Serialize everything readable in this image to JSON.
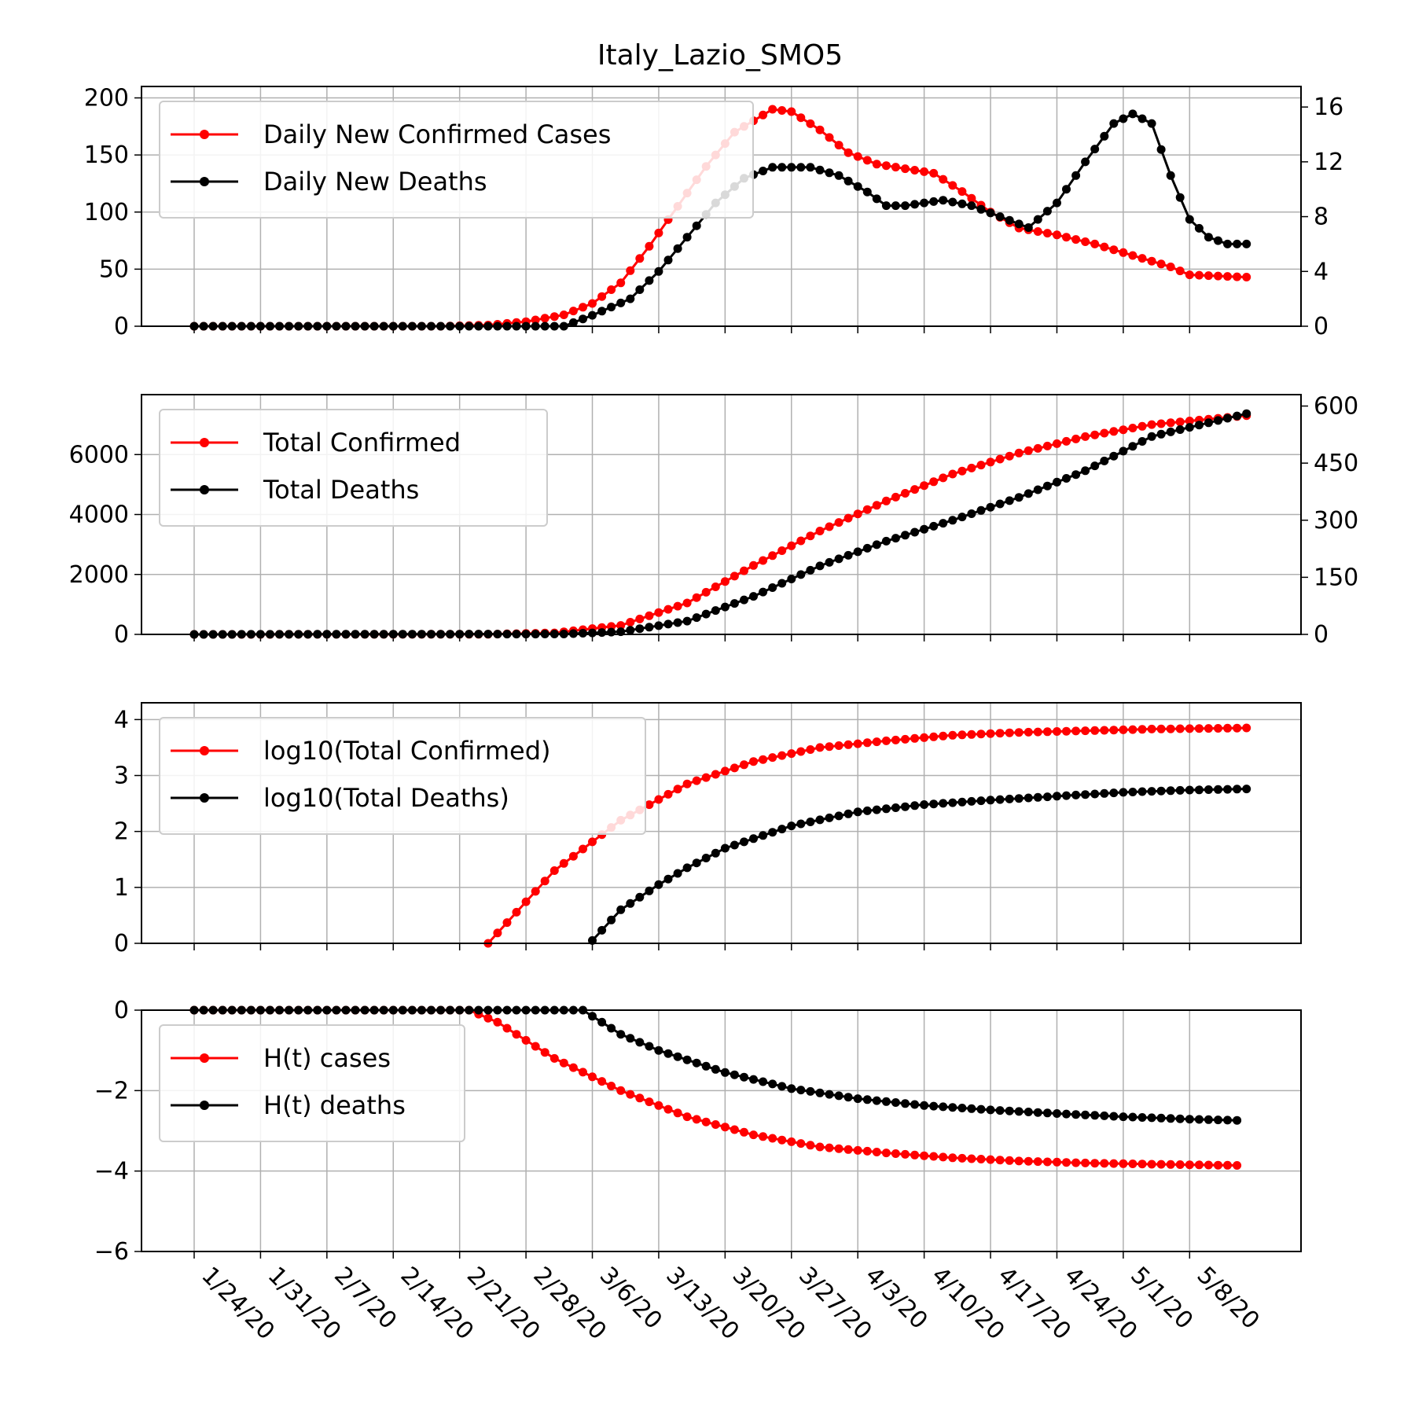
{
  "title": "Italy_Lazio_SMO5",
  "x_tick_labels": [
    "1/24/20",
    "1/31/20",
    "2/7/20",
    "2/14/20",
    "2/21/20",
    "2/28/20",
    "3/6/20",
    "3/13/20",
    "3/20/20",
    "3/27/20",
    "4/3/20",
    "4/10/20",
    "4/17/20",
    "4/24/20",
    "5/1/20",
    "5/8/20"
  ],
  "colors": {
    "cases": "#ff0000",
    "deaths": "#000000",
    "grid": "#b0b0b0"
  },
  "chart_data": [
    {
      "type": "line",
      "x_start": "1/24/20",
      "x_end": "5/14/20",
      "ylim_left": [
        0,
        210
      ],
      "ylim_right": [
        0,
        17.5
      ],
      "yticks_left": [
        0,
        50,
        100,
        150,
        200
      ],
      "yticks_right": [
        0,
        4,
        8,
        12,
        16
      ],
      "legend_position": "upper-left",
      "grid": true,
      "series": [
        {
          "name": "Daily New Confirmed Cases",
          "axis": "left",
          "color": "#ff0000",
          "keypoints": [
            [
              "1/24/20",
              0
            ],
            [
              "2/19/20",
              0
            ],
            [
              "2/24/20",
              1
            ],
            [
              "2/28/20",
              4
            ],
            [
              "3/3/20",
              10
            ],
            [
              "3/6/20",
              20
            ],
            [
              "3/9/20",
              38
            ],
            [
              "3/12/20",
              70
            ],
            [
              "3/15/20",
              105
            ],
            [
              "3/18/20",
              140
            ],
            [
              "3/21/20",
              170
            ],
            [
              "3/25/20",
              190
            ],
            [
              "3/27/20",
              188
            ],
            [
              "3/30/20",
              172
            ],
            [
              "4/2/20",
              152
            ],
            [
              "4/5/20",
              142
            ],
            [
              "4/8/20",
              138
            ],
            [
              "4/11/20",
              134
            ],
            [
              "4/14/20",
              118
            ],
            [
              "4/17/20",
              100
            ],
            [
              "4/20/20",
              86
            ],
            [
              "4/24/20",
              80
            ],
            [
              "4/28/20",
              72
            ],
            [
              "5/2/20",
              62
            ],
            [
              "5/6/20",
              52
            ],
            [
              "5/8/20",
              45
            ],
            [
              "5/14/20",
              43
            ]
          ]
        },
        {
          "name": "Daily New Deaths",
          "axis": "right",
          "color": "#000000",
          "keypoints": [
            [
              "1/24/20",
              0
            ],
            [
              "3/3/20",
              0
            ],
            [
              "3/6/20",
              0.8
            ],
            [
              "3/10/20",
              2
            ],
            [
              "3/13/20",
              4
            ],
            [
              "3/16/20",
              6.5
            ],
            [
              "3/19/20",
              9
            ],
            [
              "3/22/20",
              10.8
            ],
            [
              "3/25/20",
              11.6
            ],
            [
              "3/29/20",
              11.6
            ],
            [
              "4/1/20",
              11
            ],
            [
              "4/4/20",
              9.8
            ],
            [
              "4/6/20",
              8.8
            ],
            [
              "4/8/20",
              8.8
            ],
            [
              "4/12/20",
              9.2
            ],
            [
              "4/15/20",
              8.8
            ],
            [
              "4/18/20",
              8
            ],
            [
              "4/21/20",
              7.2
            ],
            [
              "4/24/20",
              9
            ],
            [
              "4/27/20",
              12
            ],
            [
              "4/30/20",
              14.8
            ],
            [
              "5/2/20",
              15.5
            ],
            [
              "5/4/20",
              14.8
            ],
            [
              "5/6/20",
              11
            ],
            [
              "5/8/20",
              7.8
            ],
            [
              "5/10/20",
              6.5
            ],
            [
              "5/12/20",
              6
            ],
            [
              "5/14/20",
              6
            ]
          ]
        }
      ]
    },
    {
      "type": "line",
      "x_start": "1/24/20",
      "x_end": "5/14/20",
      "ylim_left": [
        0,
        8000
      ],
      "ylim_right": [
        0,
        630
      ],
      "yticks_left": [
        0,
        2000,
        4000,
        6000
      ],
      "yticks_right": [
        0,
        150,
        300,
        450,
        600
      ],
      "legend_position": "upper-left",
      "grid": true,
      "series": [
        {
          "name": "Total Confirmed",
          "axis": "left",
          "color": "#ff0000",
          "keypoints": [
            [
              "1/24/20",
              0
            ],
            [
              "2/24/20",
              5
            ],
            [
              "3/2/20",
              50
            ],
            [
              "3/9/20",
              300
            ],
            [
              "3/16/20",
              1050
            ],
            [
              "3/23/20",
              2300
            ],
            [
              "3/30/20",
              3450
            ],
            [
              "4/6/20",
              4450
            ],
            [
              "4/13/20",
              5350
            ],
            [
              "4/20/20",
              6050
            ],
            [
              "4/27/20",
              6600
            ],
            [
              "5/4/20",
              7000
            ],
            [
              "5/14/20",
              7300
            ]
          ]
        },
        {
          "name": "Total Deaths",
          "axis": "right",
          "color": "#000000",
          "keypoints": [
            [
              "1/24/20",
              0
            ],
            [
              "3/3/20",
              1
            ],
            [
              "3/9/20",
              7
            ],
            [
              "3/16/20",
              35
            ],
            [
              "3/23/20",
              100
            ],
            [
              "3/30/20",
              180
            ],
            [
              "4/6/20",
              245
            ],
            [
              "4/13/20",
              300
            ],
            [
              "4/20/20",
              360
            ],
            [
              "4/27/20",
              430
            ],
            [
              "5/4/20",
              520
            ],
            [
              "5/14/20",
              580
            ]
          ]
        }
      ]
    },
    {
      "type": "line",
      "x_start": "1/24/20",
      "x_end": "5/14/20",
      "ylim_left": [
        0,
        4.3
      ],
      "yticks_left": [
        0,
        1,
        2,
        3,
        4
      ],
      "legend_position": "upper-left",
      "grid": true,
      "series": [
        {
          "name": "log10(Total Confirmed)",
          "axis": "left",
          "color": "#ff0000",
          "keypoints": [
            [
              "2/24/20",
              0
            ],
            [
              "3/2/20",
              1.3
            ],
            [
              "3/9/20",
              2.2
            ],
            [
              "3/16/20",
              2.85
            ],
            [
              "3/23/20",
              3.25
            ],
            [
              "3/30/20",
              3.5
            ],
            [
              "4/6/20",
              3.62
            ],
            [
              "4/13/20",
              3.72
            ],
            [
              "4/20/20",
              3.77
            ],
            [
              "4/27/20",
              3.8
            ],
            [
              "5/4/20",
              3.83
            ],
            [
              "5/14/20",
              3.85
            ]
          ]
        },
        {
          "name": "log10(Total Deaths)",
          "axis": "left",
          "color": "#000000",
          "keypoints": [
            [
              "3/6/20",
              0.05
            ],
            [
              "3/9/20",
              0.6
            ],
            [
              "3/13/20",
              1.05
            ],
            [
              "3/16/20",
              1.35
            ],
            [
              "3/20/20",
              1.7
            ],
            [
              "3/27/20",
              2.1
            ],
            [
              "4/3/20",
              2.35
            ],
            [
              "4/10/20",
              2.48
            ],
            [
              "4/17/20",
              2.56
            ],
            [
              "4/24/20",
              2.63
            ],
            [
              "5/1/20",
              2.7
            ],
            [
              "5/8/20",
              2.74
            ],
            [
              "5/14/20",
              2.76
            ]
          ]
        }
      ]
    },
    {
      "type": "line",
      "x_start": "1/24/20",
      "x_end": "5/14/20",
      "ylim_left": [
        -6,
        0
      ],
      "yticks_left": [
        0,
        -2,
        -4,
        -6
      ],
      "legend_position": "upper-left",
      "grid": true,
      "series": [
        {
          "name": "H(t) cases",
          "axis": "left",
          "color": "#ff0000",
          "keypoints": [
            [
              "1/24/20",
              0
            ],
            [
              "2/22/20",
              0
            ],
            [
              "2/25/20",
              -0.3
            ],
            [
              "3/2/20",
              -1.2
            ],
            [
              "3/9/20",
              -2
            ],
            [
              "3/16/20",
              -2.65
            ],
            [
              "3/23/20",
              -3.1
            ],
            [
              "3/30/20",
              -3.4
            ],
            [
              "4/6/20",
              -3.55
            ],
            [
              "4/13/20",
              -3.67
            ],
            [
              "4/20/20",
              -3.75
            ],
            [
              "4/27/20",
              -3.8
            ],
            [
              "5/4/20",
              -3.83
            ],
            [
              "5/13/20",
              -3.86
            ]
          ]
        },
        {
          "name": "H(t) deaths",
          "axis": "left",
          "color": "#000000",
          "keypoints": [
            [
              "1/24/20",
              0
            ],
            [
              "3/1/20",
              0
            ],
            [
              "3/5/20",
              0
            ],
            [
              "3/9/20",
              -0.6
            ],
            [
              "3/13/20",
              -1
            ],
            [
              "3/20/20",
              -1.55
            ],
            [
              "3/27/20",
              -1.95
            ],
            [
              "4/3/20",
              -2.2
            ],
            [
              "4/10/20",
              -2.37
            ],
            [
              "4/17/20",
              -2.48
            ],
            [
              "4/24/20",
              -2.57
            ],
            [
              "5/1/20",
              -2.65
            ],
            [
              "5/8/20",
              -2.71
            ],
            [
              "5/13/20",
              -2.74
            ]
          ]
        }
      ]
    }
  ]
}
